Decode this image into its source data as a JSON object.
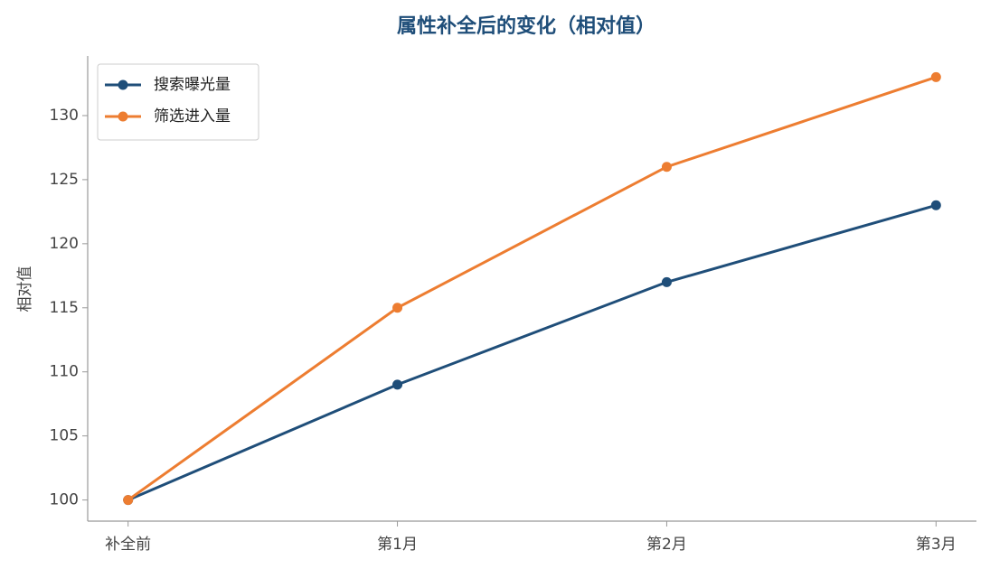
{
  "chart_data": {
    "type": "line",
    "title": "属性补全后的变化（相对值）",
    "y_label": "相对值",
    "categories": [
      "补全前",
      "第1月",
      "第2月",
      "第3月"
    ],
    "series": [
      {
        "name": "搜索曝光量",
        "color": "#1f4e79",
        "values": [
          100,
          109,
          117,
          123
        ]
      },
      {
        "name": "筛选进入量",
        "color": "#ed7d31",
        "values": [
          100,
          115,
          126,
          133
        ]
      }
    ],
    "ylim": [
      98.35,
      134.65
    ],
    "yticks": [
      100,
      105,
      110,
      115,
      120,
      125,
      130
    ],
    "legend": "upper left",
    "grid": false
  }
}
